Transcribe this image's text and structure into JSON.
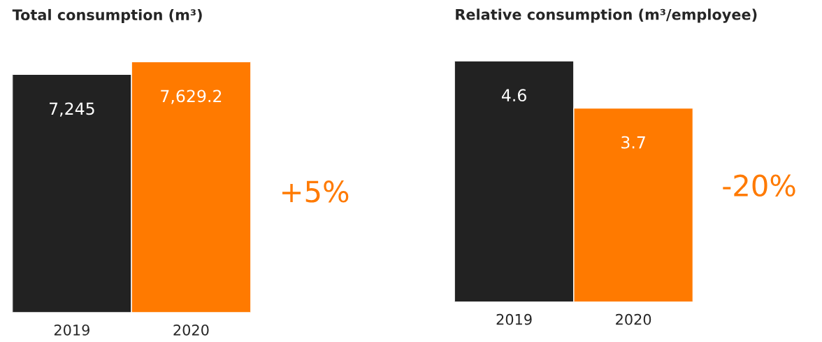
{
  "chart_data": [
    {
      "type": "bar",
      "title": "Total consumption (m³)",
      "categories": [
        "2019",
        "2020"
      ],
      "values": [
        7245,
        7629.2
      ],
      "value_labels": [
        "7,245",
        "7,629.2"
      ],
      "colors": [
        "#222222",
        "#ff7a00"
      ],
      "tick_labels": "x",
      "annotations": [
        "+5%"
      ]
    },
    {
      "type": "bar",
      "title": "Relative consumption (m³/employee)",
      "categories": [
        "2019",
        "2020"
      ],
      "values": [
        4.6,
        3.7
      ],
      "colors": [
        "#222222",
        "#ff7a00"
      ],
      "data_labels": true,
      "tick_labels": "x",
      "annotations": [
        "-20%"
      ]
    }
  ]
}
